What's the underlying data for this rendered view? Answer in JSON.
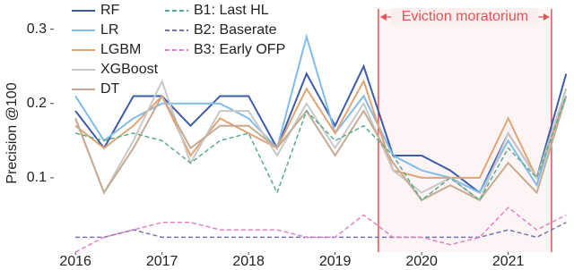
{
  "chart_data": {
    "type": "line",
    "ylabel": "Precision @100",
    "x": [
      2016,
      2016.33,
      2016.67,
      2017,
      2017.33,
      2017.67,
      2018,
      2018.33,
      2018.67,
      2019,
      2019.33,
      2019.67,
      2020,
      2020.33,
      2020.67,
      2021,
      2021.33,
      2021.67
    ],
    "xlim": [
      2015.75,
      2021.75
    ],
    "xticks": [
      2016,
      2017,
      2018,
      2019,
      2020,
      2021
    ],
    "ylim": [
      0,
      0.32
    ],
    "yticks": [
      0.1,
      0.2,
      0.3
    ],
    "legend": "upper left",
    "annotation": {
      "text": "Eviction moratorium",
      "x": [
        2019.5,
        2021.5
      ],
      "color": "#e05555"
    },
    "series": [
      {
        "name": "RF",
        "color": "#3d5ca8",
        "dashed": false,
        "values": [
          0.19,
          0.14,
          0.21,
          0.21,
          0.17,
          0.21,
          0.21,
          0.14,
          0.24,
          0.17,
          0.25,
          0.13,
          0.13,
          0.11,
          0.08,
          0.16,
          0.1,
          0.24
        ]
      },
      {
        "name": "LR",
        "color": "#82bce9",
        "dashed": false,
        "values": [
          0.21,
          0.15,
          0.18,
          0.2,
          0.2,
          0.2,
          0.18,
          0.14,
          0.29,
          0.16,
          0.21,
          0.13,
          0.11,
          0.1,
          0.08,
          0.15,
          0.09,
          0.22
        ]
      },
      {
        "name": "LGBM",
        "color": "#e3a374",
        "dashed": false,
        "values": [
          0.17,
          0.14,
          0.17,
          0.21,
          0.13,
          0.18,
          0.16,
          0.14,
          0.22,
          0.16,
          0.23,
          0.11,
          0.1,
          0.1,
          0.1,
          0.18,
          0.1,
          0.21
        ]
      },
      {
        "name": "XGBoost",
        "color": "#c8c8c8",
        "dashed": false,
        "values": [
          0.18,
          0.08,
          0.15,
          0.23,
          0.12,
          0.19,
          0.19,
          0.13,
          0.2,
          0.14,
          0.2,
          0.11,
          0.08,
          0.1,
          0.07,
          0.16,
          0.1,
          0.22
        ]
      },
      {
        "name": "DT",
        "color": "#c6aa92",
        "dashed": false,
        "values": [
          0.18,
          0.08,
          0.14,
          0.21,
          0.14,
          0.17,
          0.17,
          0.14,
          0.19,
          0.13,
          0.19,
          0.12,
          0.07,
          0.09,
          0.07,
          0.12,
          0.08,
          0.21
        ]
      },
      {
        "name": "B1: Last HL",
        "color": "#5aab8c",
        "dashed": true,
        "values": [
          0.16,
          0.15,
          0.16,
          0.15,
          0.12,
          0.15,
          0.16,
          0.08,
          0.19,
          0.15,
          0.17,
          0.13,
          0.07,
          0.1,
          0.07,
          0.14,
          0.1,
          0.21
        ]
      },
      {
        "name": "B2: Baserate",
        "color": "#7373b3",
        "dashed": true,
        "values": [
          0.02,
          0.02,
          0.03,
          0.02,
          0.02,
          0.02,
          0.02,
          0.02,
          0.02,
          0.02,
          0.02,
          0.02,
          0.02,
          0.02,
          0.02,
          0.03,
          0.02,
          0.04
        ]
      },
      {
        "name": "B3: Early OFP",
        "color": "#e382c3",
        "dashed": true,
        "values": [
          0,
          0.02,
          0.03,
          0.04,
          0.04,
          0.03,
          0.03,
          0.03,
          0.02,
          0.02,
          0.05,
          0.02,
          0.02,
          0.01,
          0.02,
          0.06,
          0.03,
          0.05
        ]
      }
    ]
  }
}
